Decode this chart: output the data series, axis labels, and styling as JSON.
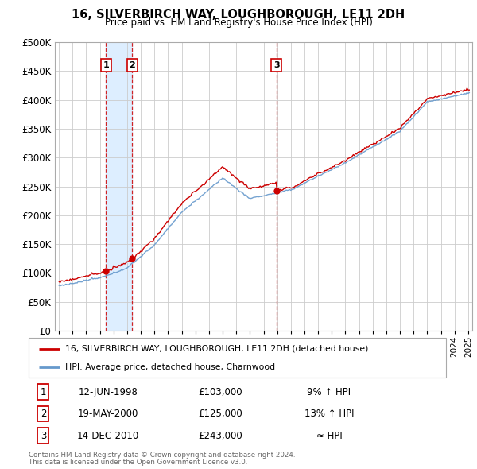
{
  "title": "16, SILVERBIRCH WAY, LOUGHBOROUGH, LE11 2DH",
  "subtitle": "Price paid vs. HM Land Registry's House Price Index (HPI)",
  "legend_line1": "16, SILVERBIRCH WAY, LOUGHBOROUGH, LE11 2DH (detached house)",
  "legend_line2": "HPI: Average price, detached house, Charnwood",
  "transactions": [
    {
      "num": "1",
      "date": "12-JUN-1998",
      "price": "£103,000",
      "note": "9% ↑ HPI",
      "x_year": 1998.44,
      "y": 103000
    },
    {
      "num": "2",
      "date": "19-MAY-2000",
      "price": "£125,000",
      "note": "13% ↑ HPI",
      "x_year": 2000.37,
      "y": 125000
    },
    {
      "num": "3",
      "date": "14-DEC-2010",
      "price": "£243,000",
      "note": "≈ HPI",
      "x_year": 2010.95,
      "y": 243000
    }
  ],
  "footer_line1": "Contains HM Land Registry data © Crown copyright and database right 2024.",
  "footer_line2": "This data is licensed under the Open Government Licence v3.0.",
  "hpi_color": "#6699cc",
  "price_color": "#cc0000",
  "shade_color": "#ddeeff",
  "grid_color": "#cccccc",
  "ylim": [
    0,
    500000
  ],
  "yticks": [
    0,
    50000,
    100000,
    150000,
    200000,
    250000,
    300000,
    350000,
    400000,
    450000,
    500000
  ],
  "xlim_left": 1994.7,
  "xlim_right": 2025.3
}
